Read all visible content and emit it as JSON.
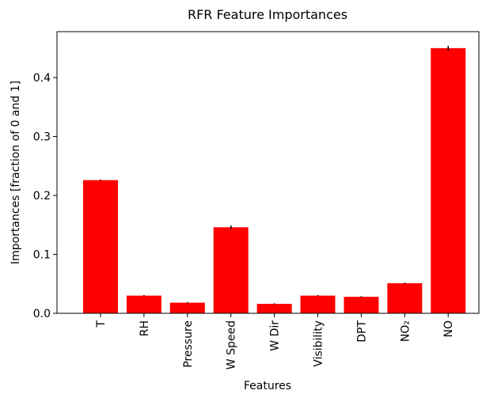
{
  "chart_data": {
    "type": "bar",
    "title": "RFR Feature Importances",
    "x_label": "Features",
    "y_label": "Importances [fraction of 0 and 1]",
    "categories": [
      "T",
      "RH",
      "Pressure",
      "W Speed",
      "W Dir",
      "Visibility",
      "DPT",
      "NO₂",
      "NO"
    ],
    "values": [
      0.226,
      0.03,
      0.018,
      0.146,
      0.016,
      0.03,
      0.028,
      0.051,
      0.45
    ],
    "errors": [
      0.001,
      0.001,
      0.001,
      0.003,
      0.001,
      0.001,
      0.001,
      0.001,
      0.004
    ],
    "color": "#ff0000",
    "error_color": "#000000",
    "ylim": [
      0,
      0.478
    ],
    "yticks": [
      {
        "value": 0,
        "label": "0.0"
      },
      0.1,
      0.2,
      0.3,
      0.4
    ],
    "grid": false
  }
}
